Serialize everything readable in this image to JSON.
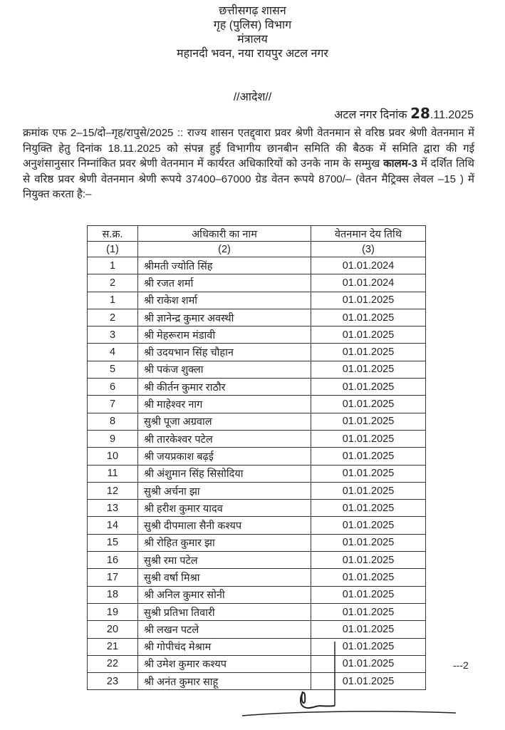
{
  "header": {
    "line1": "छत्तीसगढ़ शासन",
    "line2": "गृह (पुलिस) विभाग",
    "line3": "मंत्रालय",
    "line4": "महानदी भवन, नया रायपुर अटल नगर"
  },
  "order_title": "//आदेश//",
  "date_line": {
    "prefix": "अटल नगर दिनांक",
    "handwritten_day": "28",
    "rest": ".11.2025"
  },
  "paragraph": {
    "part1": "क्रमांक एफ 2–15/दो–गृह/रापुसे/2025 :: राज्य शासन एतद्द्वारा प्रवर श्रेणी वेतनमान से वरिष्ठ प्रवर श्रेणी वेतनमान में नियुक्ति हेतु दिनांक 18.11.2025 को संपन्न हुई विभागीय छानबीन समिति की बैठक में समिति द्वारा की गई अनुशंसानुसार निम्नांकित प्रवर श्रेणी वेतनमान में कार्यरत अधिकारियों को उनके नाम के सम्मुख ",
    "bold": "कालम-3",
    "part2": " में दर्शित तिथि से वरिष्ठ प्रवर श्रेणी वेतनमान श्रेणी रूपये 37400–67000 ग्रेड वेतन रूपये 8700/– (वेतन मैट्रिक्स लेवल –15 ) में नियुक्त करता है:–"
  },
  "table": {
    "headers": [
      "स.क्र.",
      "अधिकारी का नाम",
      "वेतनमान देय तिथि"
    ],
    "subheaders": [
      "(1)",
      "(2)",
      "(3)"
    ],
    "rows": [
      [
        "1",
        "श्रीमती ज्योति सिंह",
        "01.01.2024"
      ],
      [
        "2",
        "श्री रजत शर्मा",
        "01.01.2024"
      ],
      [
        "1",
        "श्री राकेश शर्मा",
        "01.01.2025"
      ],
      [
        "2",
        "श्री ज्ञानेन्द्र कुमार अवस्थी",
        "01.01.2025"
      ],
      [
        "3",
        "श्री मेहरूराम मंडावी",
        "01.01.2025"
      ],
      [
        "4",
        "श्री उदयभान सिंह चौहान",
        "01.01.2025"
      ],
      [
        "5",
        "श्री पकंज शुक्ला",
        "01.01.2025"
      ],
      [
        "6",
        "श्री कीर्तन कुमार राठौर",
        "01.01.2025"
      ],
      [
        "7",
        "श्री माहेश्वर नाग",
        "01.01.2025"
      ],
      [
        "8",
        "सुश्री पूजा अग्रवाल",
        "01.01.2025"
      ],
      [
        "9",
        "श्री तारकेश्वर पटेल",
        "01.01.2025"
      ],
      [
        "10",
        "श्री जयप्रकाश बढ़ई",
        "01.01.2025"
      ],
      [
        "11",
        "श्री अंशुमान सिंह सिसोदिया",
        "01.01.2025"
      ],
      [
        "12",
        "सुश्री अर्चना झा",
        "01.01.2025"
      ],
      [
        "13",
        "श्री हरीश कुमार यादव",
        "01.01.2025"
      ],
      [
        "14",
        "सुश्री दीपमाला सैनी कश्यप",
        "01.01.2025"
      ],
      [
        "15",
        "श्री रोहित कुमार झा",
        "01.01.2025"
      ],
      [
        "16",
        "सुश्री रमा पटेल",
        "01.01.2025"
      ],
      [
        "17",
        "सुश्री वर्षा मिश्रा",
        "01.01.2025"
      ],
      [
        "18",
        "श्री अनिल कुमार सोनी",
        "01.01.2025"
      ],
      [
        "19",
        "सुश्री प्रतिभा तिवारी",
        "01.01.2025"
      ],
      [
        "20",
        "श्री लखन पटले",
        "01.01.2025"
      ],
      [
        "21",
        "श्री गोपीचंद मेश्राम",
        "01.01.2025"
      ],
      [
        "22",
        "श्री उमेश कुमार कश्यप",
        "01.01.2025"
      ],
      [
        "23",
        "श्री अनंत कुमार साहू",
        "01.01.2025"
      ]
    ]
  },
  "page_continuation": "---2"
}
